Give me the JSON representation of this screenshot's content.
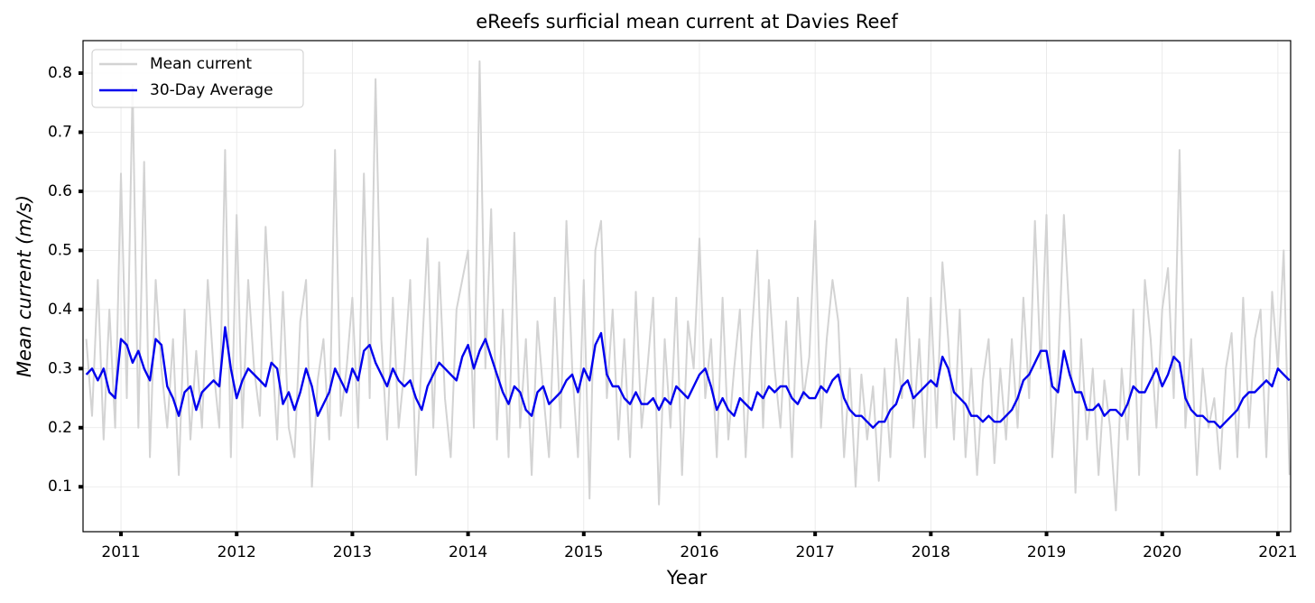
{
  "chart_data": {
    "type": "line",
    "title": "eReefs surficial mean current at Davies Reef",
    "x_label": "Year",
    "y_label": "Mean current (m/s)",
    "xlim": [
      2010.672,
      2021.11
    ],
    "ylim": [
      0.024,
      0.855
    ],
    "xticks": [
      2011,
      2012,
      2013,
      2014,
      2015,
      2016,
      2017,
      2018,
      2019,
      2020,
      2021
    ],
    "yticks": [
      0.1,
      0.2,
      0.3,
      0.4,
      0.5,
      0.6,
      0.7,
      0.8
    ],
    "grid": true,
    "legend": "upper left",
    "x": [
      2010.7,
      2010.75,
      2010.8,
      2010.85,
      2010.9,
      2010.95,
      2011,
      2011.05,
      2011.1,
      2011.15,
      2011.2,
      2011.25,
      2011.3,
      2011.35,
      2011.4,
      2011.45,
      2011.5,
      2011.55,
      2011.6,
      2011.65,
      2011.7,
      2011.75,
      2011.8,
      2011.85,
      2011.9,
      2011.95,
      2012,
      2012.05,
      2012.1,
      2012.15,
      2012.2,
      2012.25,
      2012.3,
      2012.35,
      2012.4,
      2012.45,
      2012.5,
      2012.55,
      2012.6,
      2012.65,
      2012.7,
      2012.75,
      2012.8,
      2012.85,
      2012.9,
      2012.95,
      2013,
      2013.05,
      2013.1,
      2013.15,
      2013.2,
      2013.25,
      2013.3,
      2013.35,
      2013.4,
      2013.45,
      2013.5,
      2013.55,
      2013.6,
      2013.65,
      2013.7,
      2013.75,
      2013.8,
      2013.85,
      2013.9,
      2013.95,
      2014,
      2014.05,
      2014.1,
      2014.15,
      2014.2,
      2014.25,
      2014.3,
      2014.35,
      2014.4,
      2014.45,
      2014.5,
      2014.55,
      2014.6,
      2014.65,
      2014.7,
      2014.75,
      2014.8,
      2014.85,
      2014.9,
      2014.95,
      2015,
      2015.05,
      2015.1,
      2015.15,
      2015.2,
      2015.25,
      2015.3,
      2015.35,
      2015.4,
      2015.45,
      2015.5,
      2015.55,
      2015.6,
      2015.65,
      2015.7,
      2015.75,
      2015.8,
      2015.85,
      2015.9,
      2015.95,
      2016,
      2016.05,
      2016.1,
      2016.15,
      2016.2,
      2016.25,
      2016.3,
      2016.35,
      2016.4,
      2016.45,
      2016.5,
      2016.55,
      2016.6,
      2016.65,
      2016.7,
      2016.75,
      2016.8,
      2016.85,
      2016.9,
      2016.95,
      2017,
      2017.05,
      2017.1,
      2017.15,
      2017.2,
      2017.25,
      2017.3,
      2017.35,
      2017.4,
      2017.45,
      2017.5,
      2017.55,
      2017.6,
      2017.65,
      2017.7,
      2017.75,
      2017.8,
      2017.85,
      2017.9,
      2017.95,
      2018,
      2018.05,
      2018.1,
      2018.15,
      2018.2,
      2018.25,
      2018.3,
      2018.35,
      2018.4,
      2018.45,
      2018.5,
      2018.55,
      2018.6,
      2018.65,
      2018.7,
      2018.75,
      2018.8,
      2018.85,
      2018.9,
      2018.95,
      2019,
      2019.05,
      2019.1,
      2019.15,
      2019.2,
      2019.25,
      2019.3,
      2019.35,
      2019.4,
      2019.45,
      2019.5,
      2019.55,
      2019.6,
      2019.65,
      2019.7,
      2019.75,
      2019.8,
      2019.85,
      2019.9,
      2019.95,
      2020,
      2020.05,
      2020.1,
      2020.15,
      2020.2,
      2020.25,
      2020.3,
      2020.35,
      2020.4,
      2020.45,
      2020.5,
      2020.55,
      2020.6,
      2020.65,
      2020.7,
      2020.75,
      2020.8,
      2020.85,
      2020.9,
      2020.95,
      2021,
      2021.05,
      2021.1
    ],
    "series": [
      {
        "name": "Mean current",
        "color": "#d3d3d3",
        "values": [
          0.35,
          0.22,
          0.45,
          0.18,
          0.4,
          0.2,
          0.63,
          0.25,
          0.78,
          0.2,
          0.65,
          0.15,
          0.45,
          0.3,
          0.2,
          0.35,
          0.12,
          0.4,
          0.18,
          0.33,
          0.2,
          0.45,
          0.3,
          0.2,
          0.67,
          0.15,
          0.56,
          0.2,
          0.45,
          0.3,
          0.22,
          0.54,
          0.35,
          0.18,
          0.43,
          0.2,
          0.15,
          0.38,
          0.45,
          0.1,
          0.28,
          0.35,
          0.18,
          0.67,
          0.22,
          0.3,
          0.42,
          0.2,
          0.63,
          0.25,
          0.79,
          0.35,
          0.18,
          0.42,
          0.2,
          0.3,
          0.45,
          0.12,
          0.32,
          0.52,
          0.2,
          0.48,
          0.25,
          0.15,
          0.4,
          0.45,
          0.5,
          0.2,
          0.82,
          0.3,
          0.57,
          0.18,
          0.4,
          0.15,
          0.53,
          0.2,
          0.35,
          0.12,
          0.38,
          0.26,
          0.15,
          0.42,
          0.2,
          0.55,
          0.3,
          0.15,
          0.45,
          0.08,
          0.5,
          0.55,
          0.25,
          0.4,
          0.18,
          0.35,
          0.15,
          0.43,
          0.2,
          0.3,
          0.42,
          0.07,
          0.35,
          0.2,
          0.42,
          0.12,
          0.38,
          0.3,
          0.52,
          0.25,
          0.35,
          0.15,
          0.42,
          0.18,
          0.3,
          0.4,
          0.15,
          0.35,
          0.5,
          0.2,
          0.45,
          0.3,
          0.2,
          0.38,
          0.15,
          0.42,
          0.25,
          0.32,
          0.55,
          0.2,
          0.35,
          0.45,
          0.38,
          0.15,
          0.3,
          0.1,
          0.29,
          0.18,
          0.27,
          0.11,
          0.3,
          0.15,
          0.35,
          0.25,
          0.42,
          0.2,
          0.35,
          0.15,
          0.42,
          0.2,
          0.48,
          0.35,
          0.18,
          0.4,
          0.15,
          0.3,
          0.12,
          0.28,
          0.35,
          0.14,
          0.3,
          0.18,
          0.35,
          0.2,
          0.42,
          0.25,
          0.55,
          0.3,
          0.56,
          0.15,
          0.3,
          0.56,
          0.38,
          0.09,
          0.35,
          0.18,
          0.3,
          0.12,
          0.28,
          0.2,
          0.06,
          0.3,
          0.18,
          0.4,
          0.12,
          0.45,
          0.35,
          0.2,
          0.4,
          0.47,
          0.25,
          0.67,
          0.2,
          0.35,
          0.12,
          0.3,
          0.2,
          0.25,
          0.13,
          0.3,
          0.36,
          0.15,
          0.42,
          0.2,
          0.35,
          0.4,
          0.15,
          0.43,
          0.3,
          0.5,
          0.12
        ]
      },
      {
        "name": "30-Day Average",
        "color": "#0000ee",
        "values": [
          0.29,
          0.3,
          0.28,
          0.3,
          0.26,
          0.25,
          0.35,
          0.34,
          0.31,
          0.33,
          0.3,
          0.28,
          0.35,
          0.34,
          0.27,
          0.25,
          0.22,
          0.26,
          0.27,
          0.23,
          0.26,
          0.27,
          0.28,
          0.27,
          0.37,
          0.3,
          0.25,
          0.28,
          0.3,
          0.29,
          0.28,
          0.27,
          0.31,
          0.3,
          0.24,
          0.26,
          0.23,
          0.26,
          0.3,
          0.27,
          0.22,
          0.24,
          0.26,
          0.3,
          0.28,
          0.26,
          0.3,
          0.28,
          0.33,
          0.34,
          0.31,
          0.29,
          0.27,
          0.3,
          0.28,
          0.27,
          0.28,
          0.25,
          0.23,
          0.27,
          0.29,
          0.31,
          0.3,
          0.29,
          0.28,
          0.32,
          0.34,
          0.3,
          0.33,
          0.35,
          0.32,
          0.29,
          0.26,
          0.24,
          0.27,
          0.26,
          0.23,
          0.22,
          0.26,
          0.27,
          0.24,
          0.25,
          0.26,
          0.28,
          0.29,
          0.26,
          0.3,
          0.28,
          0.34,
          0.36,
          0.29,
          0.27,
          0.27,
          0.25,
          0.24,
          0.26,
          0.24,
          0.24,
          0.25,
          0.23,
          0.25,
          0.24,
          0.27,
          0.26,
          0.25,
          0.27,
          0.29,
          0.3,
          0.27,
          0.23,
          0.25,
          0.23,
          0.22,
          0.25,
          0.24,
          0.23,
          0.26,
          0.25,
          0.27,
          0.26,
          0.27,
          0.27,
          0.25,
          0.24,
          0.26,
          0.25,
          0.25,
          0.27,
          0.26,
          0.28,
          0.29,
          0.25,
          0.23,
          0.22,
          0.22,
          0.21,
          0.2,
          0.21,
          0.21,
          0.23,
          0.24,
          0.27,
          0.28,
          0.25,
          0.26,
          0.27,
          0.28,
          0.27,
          0.32,
          0.3,
          0.26,
          0.25,
          0.24,
          0.22,
          0.22,
          0.21,
          0.22,
          0.21,
          0.21,
          0.22,
          0.23,
          0.25,
          0.28,
          0.29,
          0.31,
          0.33,
          0.33,
          0.27,
          0.26,
          0.33,
          0.29,
          0.26,
          0.26,
          0.23,
          0.23,
          0.24,
          0.22,
          0.23,
          0.23,
          0.22,
          0.24,
          0.27,
          0.26,
          0.26,
          0.28,
          0.3,
          0.27,
          0.29,
          0.32,
          0.31,
          0.25,
          0.23,
          0.22,
          0.22,
          0.21,
          0.21,
          0.2,
          0.21,
          0.22,
          0.23,
          0.25,
          0.26,
          0.26,
          0.27,
          0.28,
          0.27,
          0.3,
          0.29,
          0.28
        ]
      }
    ]
  }
}
